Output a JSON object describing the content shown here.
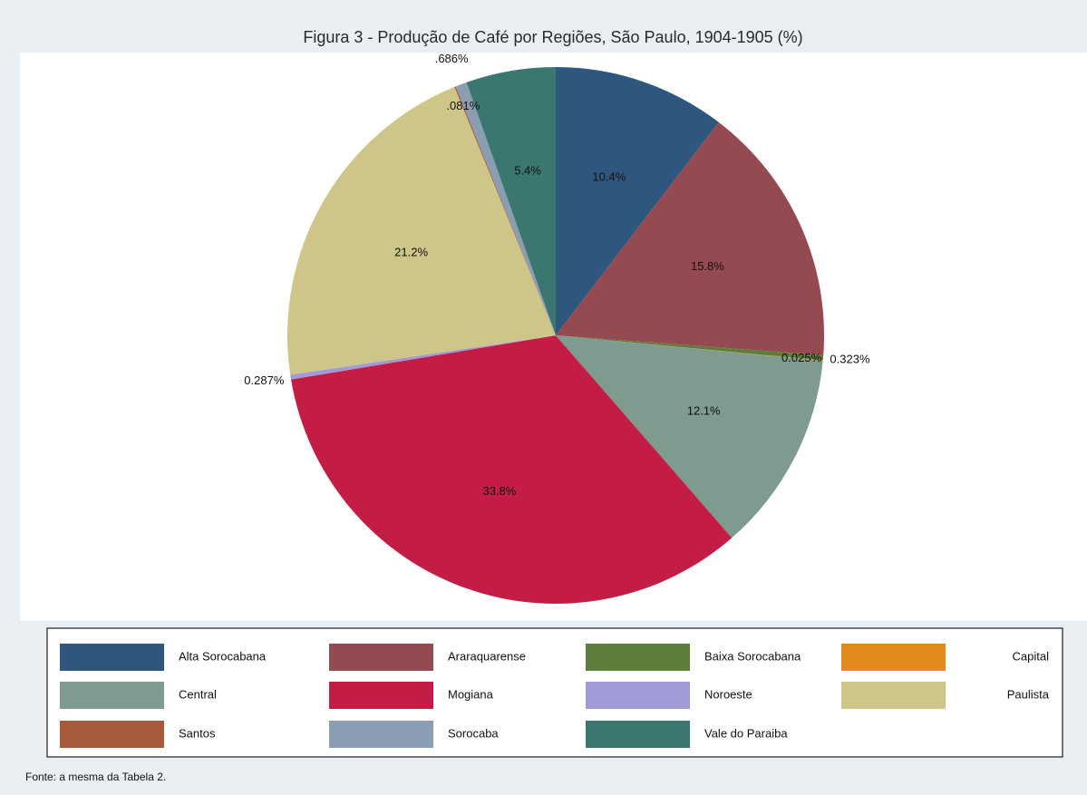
{
  "chart_data": {
    "type": "pie",
    "title": "Figura 3 - Produção de Café por Regiões, São Paulo, 1904-1905 (%)",
    "note": "Fonte: a mesma da Tabela 2.",
    "categories": [
      "Alta Sorocabana",
      "Araraquarense",
      "Baixa Sorocabana",
      "Capital",
      "Central",
      "Mogiana",
      "Noroeste",
      "Paulista",
      "Santos",
      "Sorocaba",
      "Vale do Paraiba"
    ],
    "values": [
      10.4,
      15.8,
      0.323,
      0.025,
      12.1,
      33.8,
      0.287,
      21.2,
      0.081,
      0.686,
      5.4
    ],
    "value_labels": [
      "10.4%",
      "15.8%",
      "0.323%",
      "0.025%",
      "12.1%",
      "33.8%",
      "0.287%",
      "21.2%",
      ".081%",
      ".686%",
      "5.4%"
    ],
    "colors": [
      "#2f567c",
      "#954a51",
      "#5e7f3c",
      "#e48a1a",
      "#7f9a8f",
      "#c41d45",
      "#a09bd6",
      "#cdc688",
      "#a65c3c",
      "#8a9db3",
      "#3b7670"
    ],
    "legend": "bottom"
  }
}
